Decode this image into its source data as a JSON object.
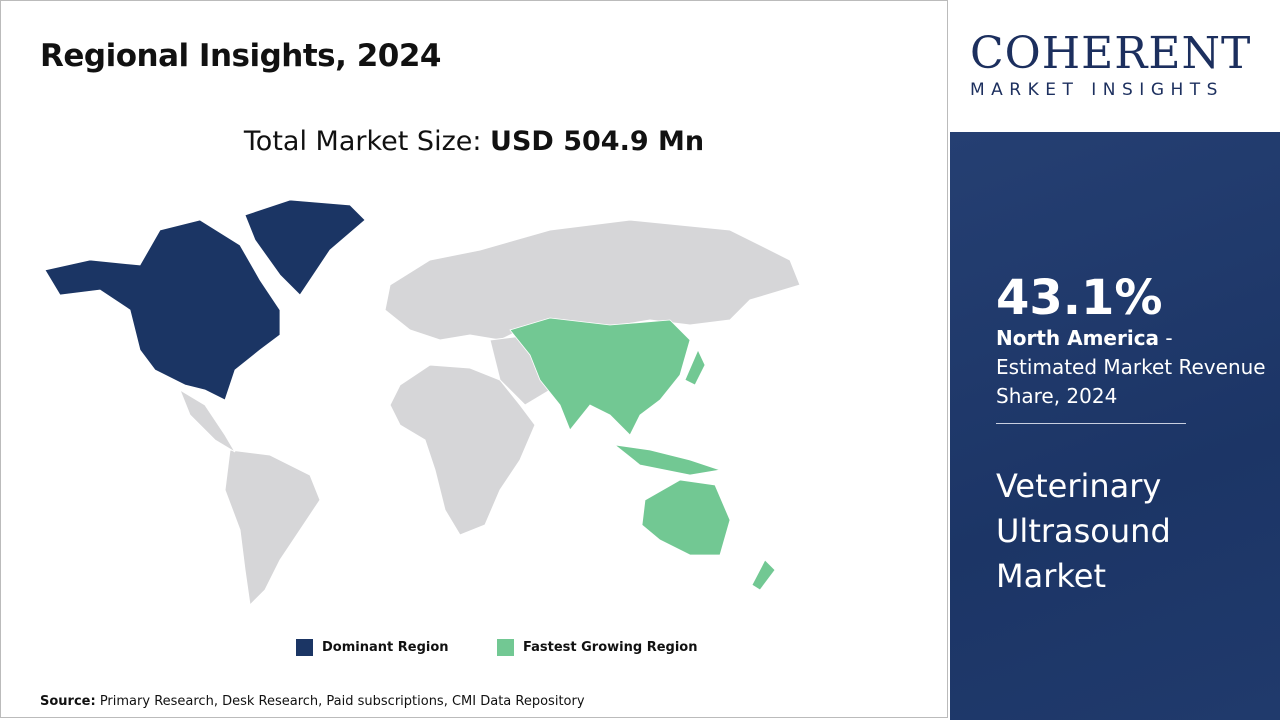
{
  "header": {
    "title": "Regional Insights, 2024"
  },
  "total": {
    "label": "Total Market Size: ",
    "value": "USD 504.9 Mn"
  },
  "legend": [
    {
      "label": "Dominant Region",
      "color": "#1b3564"
    },
    {
      "label": "Fastest Growing Region",
      "color": "#72c893"
    }
  ],
  "map": {
    "dominant_region": "North America",
    "fastest_growing_region": "Asia Pacific",
    "colors": {
      "dominant": "#1b3564",
      "fastest": "#72c893",
      "other": "#d6d6d8"
    }
  },
  "source": {
    "label": "Source:",
    "text": " Primary Research, Desk Research, Paid subscriptions, CMI Data Repository"
  },
  "logo": {
    "line1": "COHERENT",
    "line2": "MARKET INSIGHTS"
  },
  "panel": {
    "percent": "43.1%",
    "region": "North America",
    "desc": " - Estimated Market Revenue Share, 2024",
    "market": "Veterinary Ultrasound Market"
  }
}
